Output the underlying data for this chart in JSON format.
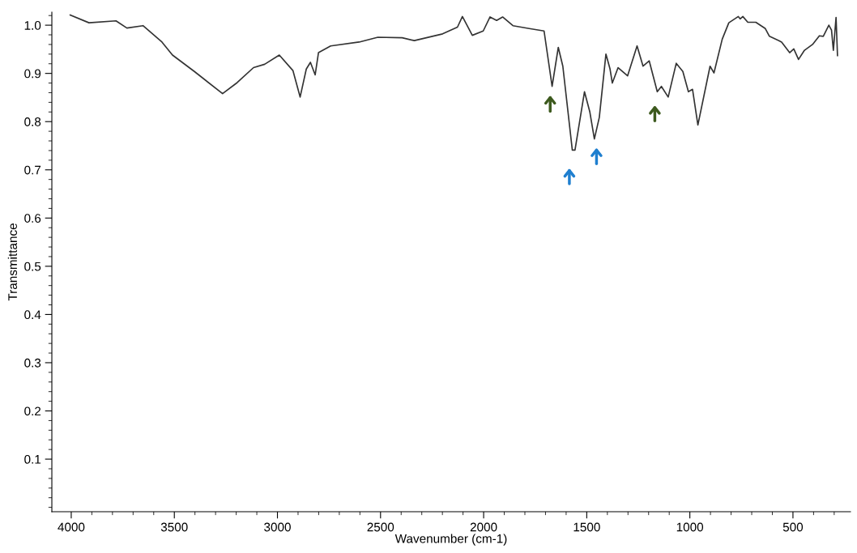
{
  "chart_data": {
    "type": "line",
    "xlabel": "Wavenumber (cm-1)",
    "ylabel": "Transmittance",
    "xlim": [
      4094,
      221
    ],
    "ylim": [
      -0.009,
      1.027
    ],
    "xticks": [
      4000,
      3500,
      3000,
      2500,
      2000,
      1500,
      1000,
      500
    ],
    "yticks": [
      0.1,
      0.2,
      0.3,
      0.4,
      0.5,
      0.6,
      0.7,
      0.8,
      0.9,
      {
        "value": 1,
        "label": "1.0"
      }
    ],
    "x": [
      4005,
      3914,
      3783,
      3730,
      3652,
      3560,
      3509,
      3403,
      3266,
      3195,
      3116,
      3062,
      2991,
      2925,
      2890,
      2860,
      2840,
      2817,
      2801,
      2742,
      2604,
      2513,
      2395,
      2336,
      2199,
      2127,
      2103,
      2055,
      2002,
      1969,
      1937,
      1908,
      1858,
      1779,
      1707,
      1668,
      1638,
      1616,
      1570,
      1557,
      1511,
      1485,
      1463,
      1439,
      1407,
      1387,
      1376,
      1348,
      1302,
      1256,
      1227,
      1197,
      1158,
      1138,
      1105,
      1066,
      1034,
      1007,
      987,
      961,
      902,
      883,
      843,
      811,
      765,
      756,
      743,
      719,
      680,
      634,
      614,
      568,
      555,
      516,
      496,
      473,
      444,
      405,
      372,
      353,
      326,
      313,
      304,
      291,
      284
    ],
    "series": [
      {
        "color": "#333333",
        "values": [
          1.021,
          1.005,
          1.009,
          0.994,
          0.999,
          0.965,
          0.938,
          0.904,
          0.858,
          0.881,
          0.912,
          0.919,
          0.938,
          0.906,
          0.851,
          0.909,
          0.923,
          0.897,
          0.943,
          0.957,
          0.965,
          0.975,
          0.974,
          0.968,
          0.982,
          0.996,
          1.018,
          0.979,
          0.988,
          1.017,
          1.01,
          1.017,
          0.999,
          0.993,
          0.988,
          0.873,
          0.954,
          0.915,
          0.741,
          0.741,
          0.862,
          0.82,
          0.764,
          0.809,
          0.94,
          0.909,
          0.88,
          0.912,
          0.895,
          0.957,
          0.915,
          0.926,
          0.862,
          0.873,
          0.851,
          0.921,
          0.904,
          0.862,
          0.867,
          0.793,
          0.915,
          0.901,
          0.971,
          1.005,
          1.018,
          1.013,
          1.018,
          1.006,
          1.006,
          0.993,
          0.977,
          0.968,
          0.965,
          0.943,
          0.951,
          0.929,
          0.948,
          0.96,
          0.978,
          0.977,
          1.0,
          0.99,
          0.948,
          1.016,
          0.937
        ]
      }
    ]
  }
}
